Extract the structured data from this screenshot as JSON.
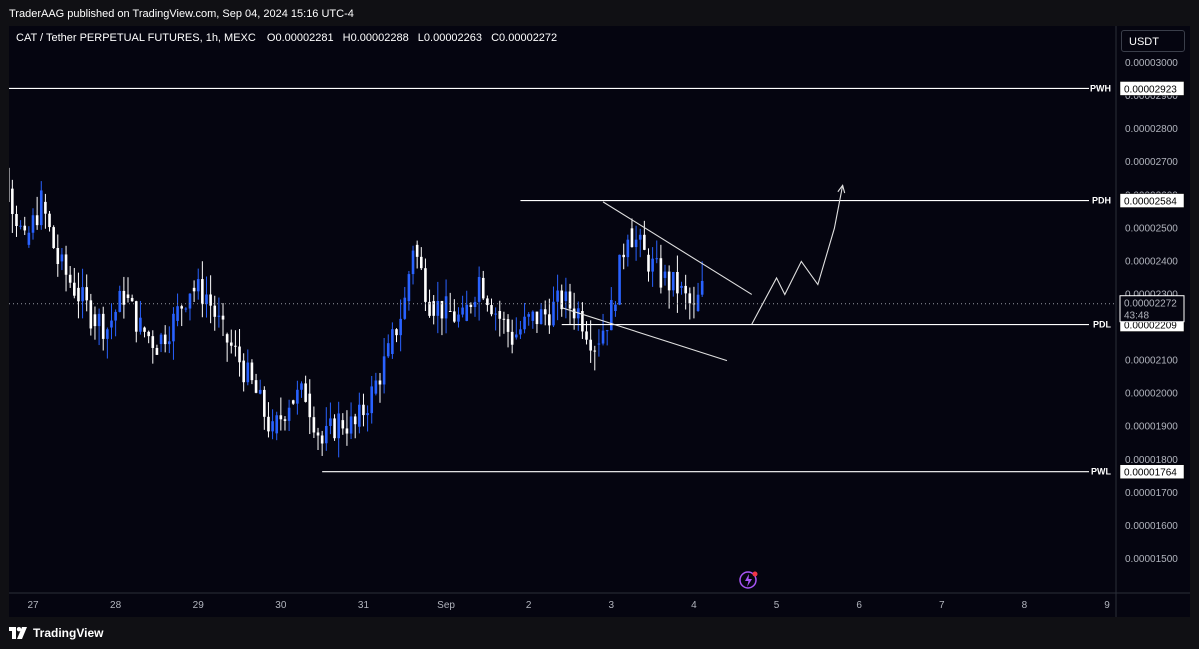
{
  "publish_line": "TraderAAG published on TradingView.com, Sep 04, 2024 15:16 UTC-4",
  "symbol": {
    "title": "CAT / Tether PERPETUAL FUTURES, 1h, MEXC",
    "o_label": "O",
    "o_value": "0.00002281",
    "h_label": "H",
    "h_value": "0.00002288",
    "l_label": "L",
    "l_value": "0.00002263",
    "c_label": "C",
    "c_value": "0.00002272"
  },
  "currency_button": "USDT",
  "brand": "TradingView",
  "chart_data": {
    "type": "candlestick",
    "x_ticks": [
      "27",
      "28",
      "29",
      "30",
      "31",
      "Sep",
      "2",
      "3",
      "4",
      "5",
      "6",
      "7",
      "8",
      "9"
    ],
    "y_ticks": [
      "0.00003000",
      "0.00002900",
      "0.00002800",
      "0.00002700",
      "0.00002600",
      "0.00002500",
      "0.00002400",
      "0.00002300",
      "0.00002200",
      "0.00002100",
      "0.00002000",
      "0.00001900",
      "0.00001800",
      "0.00001700",
      "0.00001600",
      "0.00001500"
    ],
    "ylim": [
      1.43e-05,
      3.09e-05
    ],
    "last_price": "0.00002272",
    "countdown": "43:48",
    "up_color": "#2962ff",
    "down_color": "#ffffff",
    "levels": [
      {
        "tag": "PWH",
        "value": 2.923e-05,
        "label": "0.00002923",
        "start_day": 26.0
      },
      {
        "tag": "PDH",
        "value": 2.584e-05,
        "label": "0.00002584",
        "start_day": 32.9
      },
      {
        "tag": "PDL",
        "value": 2.209e-05,
        "label": "0.00002209",
        "start_day": 33.4
      },
      {
        "tag": "PWL",
        "value": 1.764e-05,
        "label": "0.00001764",
        "start_day": 30.5
      }
    ],
    "price_path": [
      [
        26.3,
        2.7e-05
      ],
      [
        26.5,
        2.85e-05
      ],
      [
        26.7,
        2.62e-05
      ],
      [
        26.9,
        2.45e-05
      ],
      [
        27.1,
        2.58e-05
      ],
      [
        27.3,
        2.4e-05
      ],
      [
        27.5,
        2.32e-05
      ],
      [
        27.7,
        2.24e-05
      ],
      [
        27.9,
        2.2e-05
      ],
      [
        28.1,
        2.3e-05
      ],
      [
        28.3,
        2.2e-05
      ],
      [
        28.5,
        2.15e-05
      ],
      [
        28.7,
        2.22e-05
      ],
      [
        28.9,
        2.32e-05
      ],
      [
        29.1,
        2.3e-05
      ],
      [
        29.3,
        2.18e-05
      ],
      [
        29.5,
        2.1e-05
      ],
      [
        29.7,
        2e-05
      ],
      [
        29.9,
        1.88e-05
      ],
      [
        30.1,
        1.98e-05
      ],
      [
        30.3,
        2e-05
      ],
      [
        30.5,
        1.85e-05
      ],
      [
        30.7,
        1.92e-05
      ],
      [
        30.9,
        1.9e-05
      ],
      [
        31.1,
        2e-05
      ],
      [
        31.3,
        2.12e-05
      ],
      [
        31.5,
        2.28e-05
      ],
      [
        31.6,
        2.45e-05
      ],
      [
        31.8,
        2.28e-05
      ],
      [
        32.0,
        2.25e-05
      ],
      [
        32.2,
        2.22e-05
      ],
      [
        32.4,
        2.35e-05
      ],
      [
        32.6,
        2.25e-05
      ],
      [
        32.8,
        2.17e-05
      ],
      [
        33.0,
        2.22e-05
      ],
      [
        33.2,
        2.24e-05
      ],
      [
        33.4,
        2.28e-05
      ],
      [
        33.6,
        2.25e-05
      ],
      [
        33.8,
        2.15e-05
      ],
      [
        34.0,
        2.25e-05
      ],
      [
        34.2,
        2.5e-05
      ],
      [
        34.4,
        2.42e-05
      ],
      [
        34.6,
        2.35e-05
      ],
      [
        34.8,
        2.32e-05
      ],
      [
        35.0,
        2.25e-05
      ],
      [
        35.2,
        2.38e-05
      ],
      [
        35.4,
        2.26e-05
      ],
      [
        35.6,
        2.38e-05
      ],
      [
        35.8,
        2.3e-05
      ],
      [
        36.0,
        2.26e-05
      ],
      [
        36.2,
        2.32e-05
      ],
      [
        36.4,
        2.24e-05
      ],
      [
        36.6,
        2.33e-05
      ],
      [
        36.8,
        2.25e-05
      ],
      [
        37.0,
        2.28e-05
      ],
      [
        37.2,
        2.32e-05
      ],
      [
        37.4,
        2.24e-05
      ],
      [
        37.6,
        2.26e-05
      ],
      [
        37.7,
        2.24e-05
      ],
      [
        37.8,
        2.23e-05
      ],
      [
        37.9,
        2.25e-05
      ],
      [
        38.0,
        2.34e-05
      ],
      [
        38.2,
        2.24e-05
      ],
      [
        38.3,
        2.22e-05
      ],
      [
        38.5,
        2.37e-05
      ],
      [
        38.6,
        2.28e-05
      ],
      [
        38.8,
        2.25e-05
      ],
      [
        38.9,
        2.32e-05
      ],
      [
        39.0,
        2.37e-05
      ],
      [
        39.2,
        2.28e-05
      ],
      [
        39.3,
        2.22e-05
      ],
      [
        39.5,
        2.29e-05
      ],
      [
        39.6,
        2.36e-05
      ],
      [
        39.8,
        2.29e-05
      ],
      [
        40.0,
        2.25e-05
      ],
      [
        40.1,
        2.22e-05
      ],
      [
        40.3,
        2.15e-05
      ],
      [
        40.4,
        2.27e-05
      ],
      [
        40.6,
        2.36e-05
      ],
      [
        40.7,
        2.29e-05
      ],
      [
        40.9,
        2.26e-05
      ]
    ],
    "trendlines": [
      {
        "from": [
          33.9,
          2.58e-05
        ],
        "to": [
          35.7,
          2.3e-05
        ]
      },
      {
        "from": [
          33.4,
          2.26e-05
        ],
        "to": [
          35.4,
          2.1e-05
        ]
      }
    ],
    "projection": [
      [
        35.7,
        2.21e-05
      ],
      [
        36.0,
        2.35e-05
      ],
      [
        36.1,
        2.3e-05
      ],
      [
        36.3,
        2.4e-05
      ],
      [
        36.5,
        2.33e-05
      ],
      [
        36.7,
        2.5e-05
      ],
      [
        36.8,
        2.63e-05
      ]
    ]
  }
}
